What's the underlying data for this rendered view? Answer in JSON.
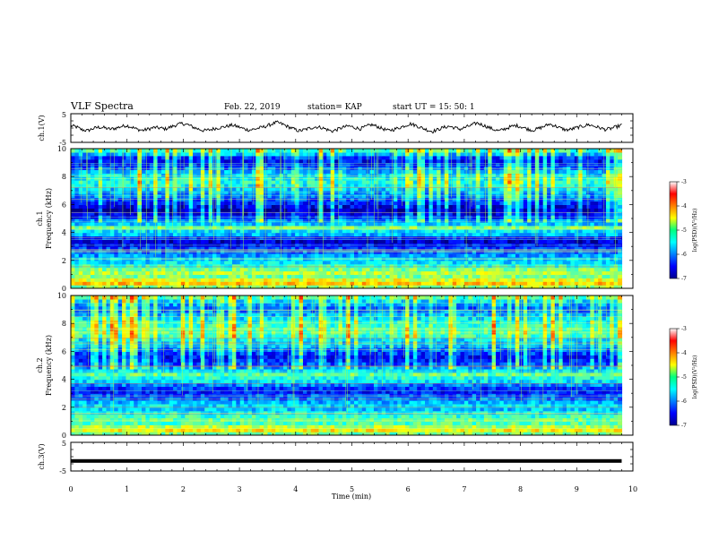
{
  "header": {
    "title": "VLF Spectra",
    "date": "Feb. 22, 2019",
    "station": "station= KAP",
    "start": "start  UT =   15: 50: 1"
  },
  "chart_data": {
    "type": "heatmap",
    "xlabel": "Time  (min)",
    "xlim": [
      0,
      10
    ],
    "xticks": [
      "0",
      "1",
      "2",
      "3",
      "4",
      "5",
      "6",
      "7",
      "8",
      "9",
      "10"
    ],
    "panels": [
      {
        "kind": "waveform",
        "ylabel": "ch.1(V)",
        "ylim": [
          -5,
          5
        ],
        "yticks": [
          "5",
          "-5"
        ],
        "trace": [
          0.8,
          0.4,
          -0.6,
          -0.9,
          -0.2,
          0.3,
          0.1,
          -0.4,
          -0.1,
          0.5,
          0.9,
          0.3,
          -0.5,
          -0.8,
          -0.3,
          0.2,
          0.0,
          -0.3,
          0.4,
          1.1,
          1.6,
          1.2,
          0.3,
          -0.4,
          -0.9,
          -0.6,
          -0.1,
          0.2,
          0.6,
          1.0,
          0.5,
          -0.2,
          -0.7,
          -0.4,
          0.1,
          0.6,
          1.3,
          2.0,
          1.4,
          0.5,
          -0.3,
          -1.0,
          -0.6,
          0.0,
          0.4,
          0.2,
          -0.5,
          -1.1,
          -0.4,
          0.3,
          0.7,
          0.2,
          -0.3,
          0.5,
          1.2,
          0.6,
          -0.2,
          -0.9,
          -0.5,
          0.1,
          0.8,
          1.5,
          0.9,
          0.1,
          -0.6,
          -1.2,
          -0.5,
          0.2,
          0.6,
          0.1,
          -0.4,
          0.3,
          1.0,
          1.8,
          1.1,
          0.3,
          -0.5,
          -1.0,
          -0.3,
          0.4,
          0.9,
          0.4,
          -0.3,
          -0.8,
          -0.2,
          0.5,
          1.4,
          0.8,
          0.0,
          -0.7,
          -0.4,
          0.2,
          0.6,
          1.2,
          0.7,
          0.1,
          -0.5,
          -0.2,
          0.4,
          1.0
        ]
      },
      {
        "kind": "spectrogram",
        "ylabel_top": "ch.1",
        "ylabel": "Frequency  (kHz)",
        "ylim": [
          0,
          10
        ],
        "yticks": [
          "0",
          "2",
          "4",
          "6",
          "8",
          "10"
        ],
        "colorbar": {
          "label": "log(PSD)(V²/Hz)",
          "range": [
            -7,
            -3
          ],
          "ticks": [
            "-3",
            "-4",
            "-5",
            "-6",
            "-7"
          ]
        },
        "band_profile": [
          -4.9,
          -4.3,
          -4.6,
          -5.0,
          -4.8,
          -5.0,
          -5.3,
          -5.6,
          -5.7,
          -5.9,
          -6.1,
          -6.3,
          -6.5,
          -6.7,
          -6.4,
          -5.8,
          -5.6,
          -5.0,
          -5.7,
          -6.0,
          -6.4,
          -6.6,
          -6.8,
          -6.6,
          -6.4,
          -6.2,
          -6.0,
          -5.9,
          -5.7,
          -5.5,
          -5.4,
          -5.5,
          -5.6,
          -5.8,
          -6.1,
          -6.4,
          -6.5,
          -6.3,
          -5.8,
          -5.3
        ]
      },
      {
        "kind": "spectrogram",
        "ylabel_top": "ch.2",
        "ylabel": "Frequency  (kHz)",
        "ylim": [
          0,
          10
        ],
        "yticks": [
          "0",
          "2",
          "4",
          "6",
          "8",
          "10"
        ],
        "colorbar": {
          "label": "log(PSD)(V²/Hz)",
          "range": [
            -7,
            -3
          ],
          "ticks": [
            "-3",
            "-4",
            "-5",
            "-6",
            "-7"
          ]
        },
        "band_profile": [
          -5.0,
          -4.5,
          -4.8,
          -5.2,
          -5.1,
          -5.3,
          -5.5,
          -5.7,
          -5.6,
          -5.8,
          -6.0,
          -6.2,
          -6.4,
          -6.3,
          -6.0,
          -5.6,
          -5.4,
          -5.1,
          -5.6,
          -5.9,
          -6.2,
          -6.4,
          -6.5,
          -6.3,
          -6.1,
          -5.9,
          -5.7,
          -5.6,
          -5.3,
          -5.2,
          -5.2,
          -5.3,
          -5.4,
          -5.6,
          -5.8,
          -6.0,
          -6.1,
          -5.9,
          -5.6,
          -5.2
        ]
      },
      {
        "kind": "waveform",
        "ylabel": "ch.3(V)",
        "ylim": [
          -5,
          5
        ],
        "yticks": [
          "5",
          "-5"
        ],
        "trace": [
          -1.5,
          -1.5,
          -1.5,
          -1.5,
          -1.5,
          -1.5,
          -1.5,
          -1.5,
          -1.5,
          -1.5,
          -1.5,
          -1.5,
          -1.5,
          -1.5,
          -1.5,
          -1.5,
          -1.5,
          -1.5,
          -1.5,
          -1.5
        ]
      }
    ]
  }
}
